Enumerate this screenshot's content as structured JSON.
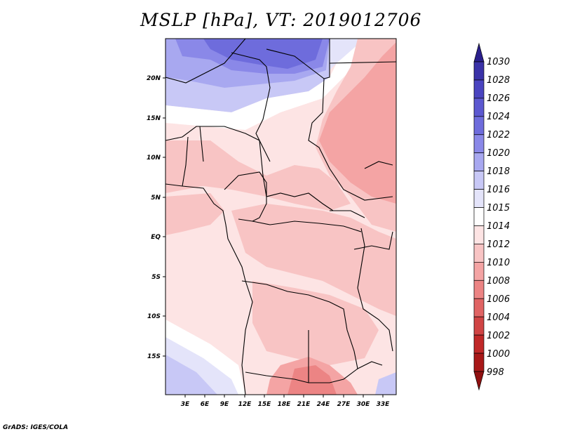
{
  "title": "MSLP [hPa], VT: 2019012706",
  "footer": "GrADS: IGES/COLA",
  "map": {
    "x_ticks": [
      "3E",
      "6E",
      "9E",
      "12E",
      "15E",
      "18E",
      "21E",
      "24E",
      "27E",
      "30E",
      "33E"
    ],
    "y_ticks": [
      "20N",
      "15N",
      "10N",
      "5N",
      "EQ",
      "5S",
      "10S",
      "15S"
    ]
  },
  "colorbar": {
    "levels": [
      "1030",
      "1028",
      "1026",
      "1024",
      "1022",
      "1020",
      "1018",
      "1016",
      "1015",
      "1014",
      "1012",
      "1010",
      "1008",
      "1006",
      "1004",
      "1002",
      "1000",
      "998"
    ],
    "colors": [
      "#2a1f8c",
      "#3a32a8",
      "#4a44c0",
      "#5c58d0",
      "#6e6cdc",
      "#8a88e8",
      "#a8a8f0",
      "#c8c8f6",
      "#e4e4fa",
      "#ffffff",
      "#fde4e4",
      "#f8c4c4",
      "#f4a4a4",
      "#ec8484",
      "#e06464",
      "#d04444",
      "#c02828",
      "#a81818",
      "#901010"
    ]
  },
  "chart_data": {
    "type": "heatmap",
    "title": "MSLP [hPa], VT: 2019012706",
    "x_ticks": [
      "3E",
      "6E",
      "9E",
      "12E",
      "15E",
      "18E",
      "21E",
      "24E",
      "27E",
      "30E",
      "33E"
    ],
    "y_ticks": [
      "20N",
      "15N",
      "10N",
      "5N",
      "EQ",
      "5S",
      "10S",
      "15S"
    ],
    "colorbar_levels": [
      1030,
      1028,
      1026,
      1024,
      1022,
      1020,
      1018,
      1016,
      1015,
      1014,
      1012,
      1010,
      1008,
      1006,
      1004,
      1002,
      1000,
      998
    ]
  }
}
